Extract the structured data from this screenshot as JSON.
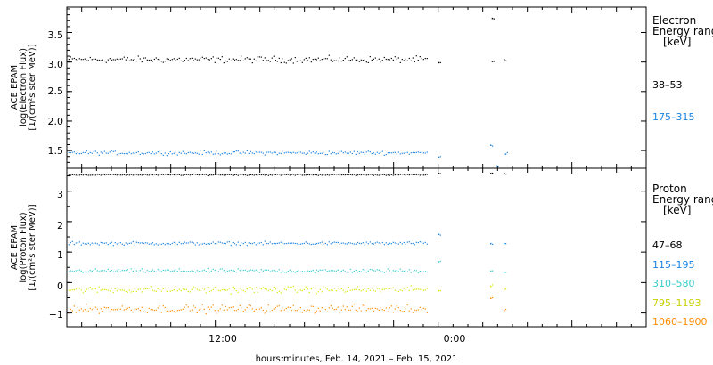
{
  "chart_data": {
    "type": "scatter",
    "xlabel": "hours:minutes, Feb. 14, 2021 – Feb. 15, 2021",
    "x_tick_labels": [
      "12:00",
      "0:00"
    ],
    "panels": [
      {
        "id": "electron",
        "ylabel_lines": [
          "ACE EPAM",
          "log(Electron Flux)",
          "[1/(cm²s ster MeV)]"
        ],
        "y_ticks": [
          "1.5",
          "2.0",
          "2.5",
          "3.0",
          "3.5"
        ],
        "legend_title": [
          "Electron",
          "Energy range",
          "[keV]"
        ],
        "series": [
          {
            "name": "38–53",
            "color": "#000000",
            "level": 3.05,
            "noise": 0.05,
            "extra_points": [
              [
                25.0,
                3.0
              ],
              [
                28.6,
                3.75
              ],
              [
                28.6,
                3.02
              ],
              [
                29.4,
                3.05
              ]
            ]
          },
          {
            "name": "175–315",
            "color": "#1a82e0",
            "level": 1.47,
            "noise": 0.03,
            "extra_points": [
              [
                25.0,
                1.4
              ],
              [
                28.5,
                1.6
              ],
              [
                28.9,
                1.25
              ],
              [
                29.5,
                1.45
              ]
            ]
          }
        ]
      },
      {
        "id": "proton",
        "ylabel_lines": [
          "ACE EPAM",
          "log(Proton Flux)",
          "[1/(cm²s ster MeV)]"
        ],
        "y_ticks": [
          "−1",
          "0",
          "1",
          "2",
          "3"
        ],
        "legend_title": [
          "Proton",
          "Energy range",
          "[keV]"
        ],
        "series": [
          {
            "name": "47–68",
            "color": "#000000",
            "level": 3.55,
            "noise": 0.02,
            "extra_points": [
              [
                25.0,
                3.6
              ],
              [
                28.5,
                3.6
              ],
              [
                29.4,
                3.6
              ]
            ]
          },
          {
            "name": "115–195",
            "color": "#1a82e0",
            "level": 1.3,
            "noise": 0.05,
            "extra_points": [
              [
                25.0,
                1.6
              ],
              [
                28.5,
                1.3
              ],
              [
                29.4,
                1.3
              ]
            ]
          },
          {
            "name": "310–580",
            "color": "#33cccc",
            "level": 0.4,
            "noise": 0.06,
            "extra_points": [
              [
                25.0,
                0.7
              ],
              [
                28.5,
                0.4
              ],
              [
                29.4,
                0.35
              ]
            ]
          },
          {
            "name": "795–1193",
            "color": "#d9e600",
            "level": -0.22,
            "noise": 0.1,
            "extra_points": [
              [
                25.0,
                -0.25
              ],
              [
                28.5,
                -0.1
              ],
              [
                29.4,
                -0.2
              ]
            ]
          },
          {
            "name": "1060–1900",
            "color": "#ff8c00",
            "level": -0.85,
            "noise": 0.12,
            "extra_points": [
              [
                28.5,
                -0.5
              ],
              [
                29.4,
                -0.9
              ]
            ]
          }
        ]
      }
    ]
  }
}
